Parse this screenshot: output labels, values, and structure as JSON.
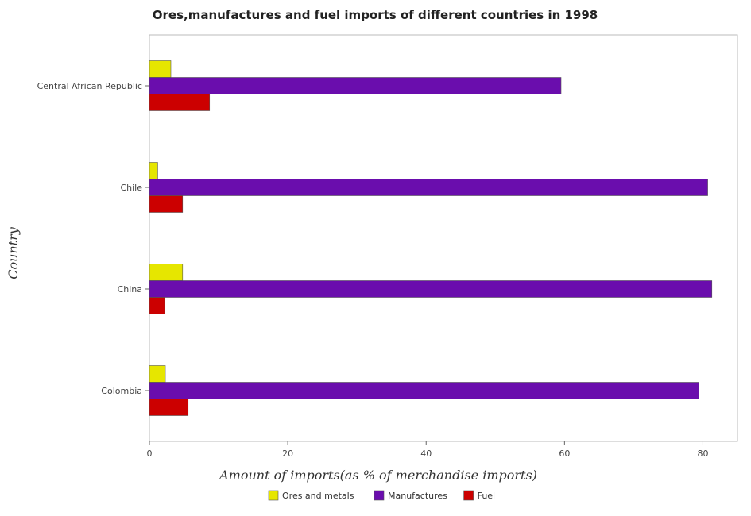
{
  "chart_data": {
    "type": "bar",
    "orientation": "horizontal",
    "title": "Ores,manufactures and fuel imports of different countries in 1998",
    "xlabel": "Amount of imports(as % of merchandise imports)",
    "ylabel": "Country",
    "xlim": [
      0,
      85
    ],
    "xticks": [
      0,
      20,
      40,
      60,
      80
    ],
    "categories": [
      "Central African Republic",
      "Chile",
      "China",
      "Colombia"
    ],
    "series": [
      {
        "name": "Ores and metals",
        "color": "#e6e600",
        "values": [
          3.1,
          1.2,
          4.8,
          2.3
        ]
      },
      {
        "name": "Manufactures",
        "color": "#6a0dad",
        "values": [
          59.5,
          80.7,
          81.3,
          79.4
        ]
      },
      {
        "name": "Fuel",
        "color": "#cc0000",
        "values": [
          8.7,
          4.8,
          2.2,
          5.6
        ]
      }
    ],
    "grid": false,
    "legend_position": "bottom"
  }
}
